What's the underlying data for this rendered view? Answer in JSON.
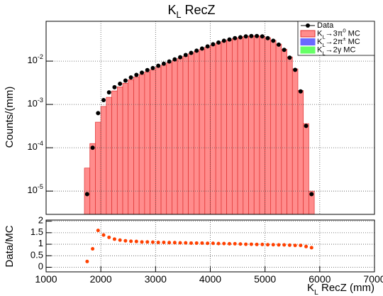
{
  "chart_data": {
    "type": "histogram",
    "title": "K_{L} RecZ",
    "xlabel": "K_{L} RecZ (mm)",
    "ylabel": "Counts/(mm)",
    "ratio_ylabel": "Data/MC",
    "bins": [
      1700,
      1800,
      1900,
      2000,
      2100,
      2200,
      2300,
      2400,
      2500,
      2600,
      2700,
      2800,
      2900,
      3000,
      3100,
      3200,
      3300,
      3400,
      3500,
      3600,
      3700,
      3800,
      3900,
      4000,
      4100,
      4200,
      4300,
      4400,
      4500,
      4600,
      4700,
      4800,
      4900,
      5000,
      5100,
      5200,
      5300,
      5400,
      5500,
      5600,
      5700,
      5800,
      5900
    ],
    "series": [
      {
        "name": "Data",
        "color": "#000000",
        "role": "points",
        "values": [
          8.5e-06,
          0.0001,
          0.00063,
          0.00126,
          0.0019,
          0.0025,
          0.003,
          0.00355,
          0.0042,
          0.0048,
          0.0054,
          0.0062,
          0.0069,
          0.0078,
          0.0087,
          0.0098,
          0.011,
          0.0123,
          0.0138,
          0.0155,
          0.0174,
          0.0195,
          0.0219,
          0.0245,
          0.0269,
          0.0295,
          0.0316,
          0.0339,
          0.0355,
          0.0372,
          0.038,
          0.038,
          0.0372,
          0.0339,
          0.0295,
          0.024,
          0.0182,
          0.012,
          0.0063,
          0.002,
          0.00032,
          8.5e-06
        ]
      },
      {
        "name": "K_{L}→3π^{0} MC",
        "color": "#ff8c8c",
        "role": "histogram",
        "values": [
          3.4e-05,
          0.000125,
          0.00039,
          0.0009,
          0.00146,
          0.00205,
          0.00254,
          0.00309,
          0.00372,
          0.00429,
          0.00491,
          0.00564,
          0.00633,
          0.00722,
          0.00806,
          0.00916,
          0.0103,
          0.0116,
          0.013,
          0.0148,
          0.0166,
          0.0186,
          0.0211,
          0.0236,
          0.0261,
          0.0286,
          0.031,
          0.0332,
          0.0351,
          0.0372,
          0.038,
          0.0384,
          0.0376,
          0.0346,
          0.0301,
          0.0247,
          0.0188,
          0.0125,
          0.0066,
          0.0021,
          0.00036,
          1e-05
        ]
      },
      {
        "name": "K_{L}→2π^{±} MC",
        "color": "#6a6aff",
        "role": "legend"
      },
      {
        "name": "K_{L}→2γ MC",
        "color": "#66ff66",
        "role": "legend"
      }
    ],
    "ratio": {
      "color": "#ff4000",
      "values": [
        0.25,
        0.8,
        1.6,
        1.4,
        1.3,
        1.22,
        1.18,
        1.15,
        1.13,
        1.12,
        1.1,
        1.1,
        1.09,
        1.08,
        1.08,
        1.07,
        1.07,
        1.06,
        1.06,
        1.05,
        1.05,
        1.05,
        1.04,
        1.04,
        1.03,
        1.03,
        1.02,
        1.02,
        1.01,
        1.0,
        1.0,
        0.99,
        0.99,
        0.98,
        0.98,
        0.97,
        0.97,
        0.96,
        0.95,
        0.95,
        0.9,
        0.85
      ]
    },
    "xlim": [
      1000,
      7000
    ],
    "xticks": [
      1000,
      2000,
      3000,
      4000,
      5000,
      6000,
      7000
    ],
    "ylim": [
      2.9e-06,
      0.083
    ],
    "log_y": true,
    "yticks": [
      {
        "value": 1e-05,
        "label": "10^{-5}"
      },
      {
        "value": 0.0001,
        "label": "10^{-4}"
      },
      {
        "value": 0.001,
        "label": "10^{-3}"
      },
      {
        "value": 0.01,
        "label": "10^{-2}"
      }
    ],
    "ratio_ylim": [
      -0.2,
      2.05
    ],
    "ratio_yticks": [
      0,
      0.5,
      1,
      1.5,
      2
    ],
    "grid": true,
    "legend": "upper right"
  }
}
